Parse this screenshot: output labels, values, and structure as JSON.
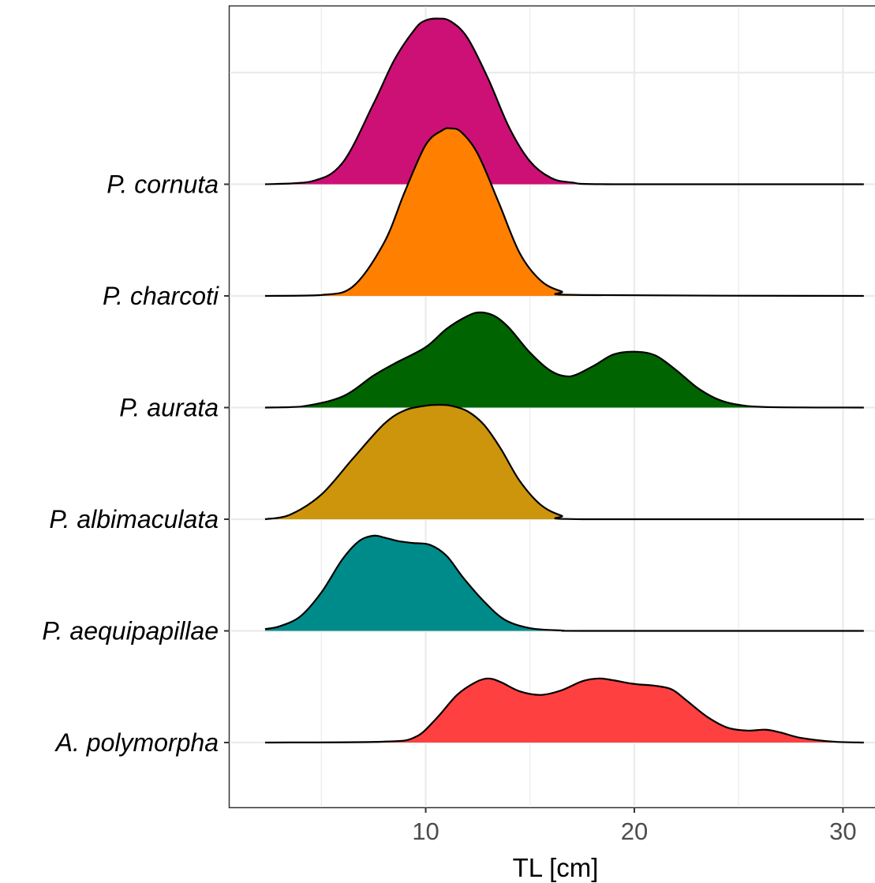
{
  "chart_data": {
    "type": "area",
    "subtype": "ridgeline-density",
    "title": "",
    "xlabel": "TL [cm]",
    "ylabel": "",
    "xlim": [
      0.6,
      31.8
    ],
    "x_ticks": [
      10,
      20,
      30
    ],
    "x_tick_labels": [
      "10",
      "20",
      "30"
    ],
    "grid": true,
    "legend": "none",
    "categories": [
      "A. polymorpha",
      "P. aequipapillae",
      "P. albimaculata",
      "P. aurata",
      "P. charcoti",
      "P. cornuta"
    ],
    "series": [
      {
        "name": "A. polymorpha",
        "color": "#FF4040",
        "x": [
          2.3,
          8.0,
          9.5,
          10.5,
          11.5,
          12.4,
          13.0,
          13.6,
          14.5,
          15.5,
          16.5,
          17.5,
          18.3,
          19.0,
          20.0,
          21.0,
          21.8,
          22.5,
          23.5,
          24.5,
          25.5,
          26.3,
          27.0,
          28.0,
          29.5,
          31.0
        ],
        "density": [
          0.0,
          0.01,
          0.06,
          0.26,
          0.52,
          0.66,
          0.7,
          0.66,
          0.56,
          0.52,
          0.57,
          0.67,
          0.7,
          0.68,
          0.64,
          0.62,
          0.58,
          0.46,
          0.28,
          0.16,
          0.13,
          0.14,
          0.11,
          0.05,
          0.01,
          0.0
        ]
      },
      {
        "name": "P. aequipapillae",
        "color": "#008B8B",
        "x": [
          2.3,
          3.0,
          4.0,
          5.0,
          6.0,
          6.8,
          7.5,
          8.0,
          8.7,
          9.4,
          10.2,
          11.0,
          11.8,
          12.8,
          13.8,
          15.0,
          16.5,
          18.0,
          31.0
        ],
        "density": [
          0.02,
          0.05,
          0.16,
          0.42,
          0.78,
          0.98,
          1.04,
          1.02,
          0.98,
          0.96,
          0.94,
          0.82,
          0.58,
          0.32,
          0.12,
          0.03,
          0.005,
          0.0,
          0.0
        ]
      },
      {
        "name": "P. albimaculata",
        "color": "#CD950C",
        "x": [
          2.3,
          3.5,
          5.0,
          6.5,
          8.0,
          9.0,
          10.0,
          10.6,
          11.2,
          12.0,
          12.8,
          13.6,
          14.5,
          15.5,
          16.5,
          17.5,
          31.0
        ],
        "density": [
          0.0,
          0.05,
          0.27,
          0.66,
          1.04,
          1.19,
          1.24,
          1.25,
          1.24,
          1.18,
          1.03,
          0.77,
          0.42,
          0.16,
          0.04,
          0.0,
          0.0
        ]
      },
      {
        "name": "P. aurata",
        "color": "#006400",
        "x": [
          2.3,
          4.0,
          6.0,
          7.5,
          8.5,
          10.0,
          11.0,
          12.0,
          12.6,
          13.3,
          14.0,
          15.0,
          16.0,
          16.9,
          18.0,
          19.0,
          20.0,
          21.0,
          22.0,
          23.0,
          24.0,
          25.0,
          26.5,
          31.0
        ],
        "density": [
          0.0,
          0.01,
          0.12,
          0.35,
          0.48,
          0.66,
          0.86,
          1.0,
          1.04,
          1.0,
          0.87,
          0.6,
          0.4,
          0.34,
          0.45,
          0.58,
          0.61,
          0.57,
          0.41,
          0.22,
          0.09,
          0.03,
          0.005,
          0.0
        ]
      },
      {
        "name": "P. charcoti",
        "color": "#FF8000",
        "x": [
          2.3,
          5.0,
          6.5,
          8.0,
          9.0,
          10.0,
          10.8,
          11.2,
          11.7,
          12.5,
          13.5,
          14.5,
          15.5,
          16.5,
          17.5,
          31.0
        ],
        "density": [
          0.0,
          0.01,
          0.1,
          0.58,
          1.14,
          1.65,
          1.81,
          1.83,
          1.79,
          1.55,
          1.02,
          0.47,
          0.17,
          0.05,
          0.01,
          0.0
        ]
      },
      {
        "name": "P. cornuta",
        "color": "#CD1076",
        "x": [
          2.3,
          4.5,
          6.0,
          7.5,
          8.5,
          9.5,
          10.0,
          10.6,
          11.2,
          12.0,
          13.0,
          14.0,
          15.0,
          16.0,
          17.0,
          19.0,
          31.0
        ],
        "density": [
          0.0,
          0.03,
          0.23,
          0.88,
          1.36,
          1.7,
          1.79,
          1.81,
          1.78,
          1.6,
          1.15,
          0.62,
          0.25,
          0.07,
          0.02,
          0.0,
          0.0
        ]
      }
    ]
  }
}
